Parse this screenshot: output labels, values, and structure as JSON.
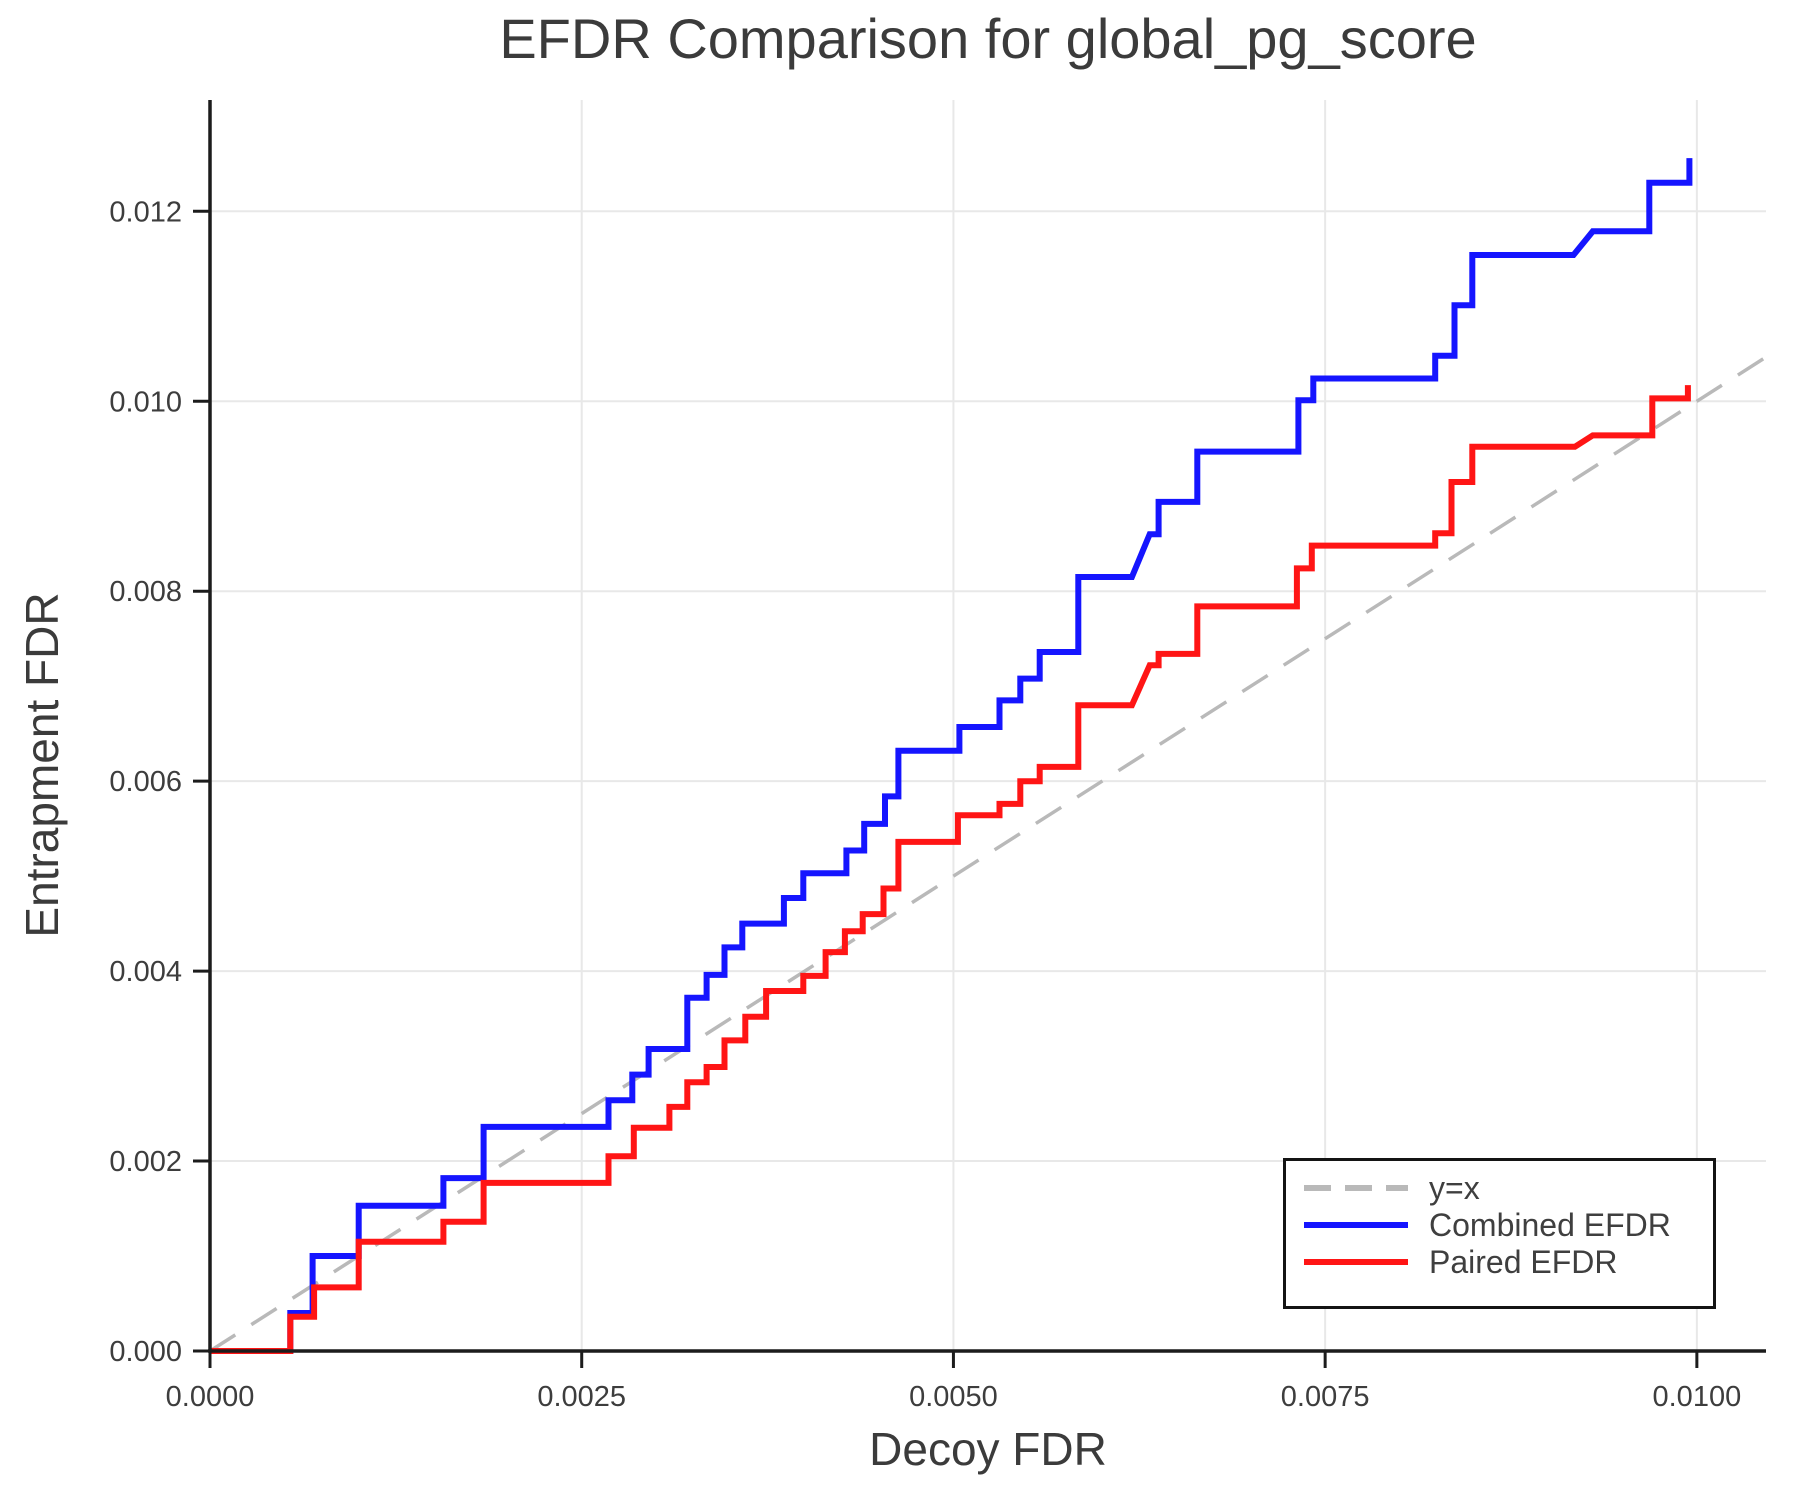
{
  "page": {
    "background": "#ffffff"
  },
  "chart_data": {
    "type": "line",
    "subtype": "step",
    "title": "EFDR Comparison for global_pg_score",
    "xlabel": "Decoy FDR",
    "ylabel": "Entrapment FDR",
    "xlim": [
      0,
      0.010465
    ],
    "ylim": [
      0,
      0.013172
    ],
    "grid": true,
    "legend_position": "lower right",
    "axis_color": "#1c1c1c",
    "grid_color": "#e8e8e8",
    "tick_text_color": "#3d3d3d",
    "x_ticks": {
      "values": [
        0,
        0.0025,
        0.005,
        0.0075,
        0.01
      ],
      "labels": [
        "0.0000",
        "0.0025",
        "0.0050",
        "0.0075",
        "0.0100"
      ]
    },
    "y_ticks": {
      "values": [
        0,
        0.002,
        0.004,
        0.006,
        0.008,
        0.01,
        0.012
      ],
      "labels": [
        "0.000",
        "0.002",
        "0.004",
        "0.006",
        "0.008",
        "0.010",
        "0.012"
      ]
    },
    "series": [
      {
        "name": "y=x",
        "color": "#b9b9b9",
        "style": "dashed",
        "points": [
          [
            0,
            0
          ],
          [
            0.010465,
            0.010465
          ]
        ]
      },
      {
        "name": "Combined EFDR",
        "color": "#1515ff",
        "style": "solid",
        "points": [
          [
            0,
            0
          ],
          [
            0.00054,
            0
          ],
          [
            0.00054,
            0.0004
          ],
          [
            0.00069,
            0.0004
          ],
          [
            0.00069,
            0.001
          ],
          [
            0.001,
            0.001
          ],
          [
            0.001,
            0.00153
          ],
          [
            0.00157,
            0.00153
          ],
          [
            0.00157,
            0.00182
          ],
          [
            0.00184,
            0.00182
          ],
          [
            0.00184,
            0.00236
          ],
          [
            0.00268,
            0.00236
          ],
          [
            0.00268,
            0.00264
          ],
          [
            0.00284,
            0.00264
          ],
          [
            0.00284,
            0.00291
          ],
          [
            0.00295,
            0.00291
          ],
          [
            0.00295,
            0.00318
          ],
          [
            0.00321,
            0.00318
          ],
          [
            0.00321,
            0.00372
          ],
          [
            0.00334,
            0.00372
          ],
          [
            0.00334,
            0.00396
          ],
          [
            0.00346,
            0.00396
          ],
          [
            0.00346,
            0.00425
          ],
          [
            0.00358,
            0.00425
          ],
          [
            0.00358,
            0.0045
          ],
          [
            0.00386,
            0.0045
          ],
          [
            0.00386,
            0.00477
          ],
          [
            0.00399,
            0.00477
          ],
          [
            0.00399,
            0.00503
          ],
          [
            0.00428,
            0.00503
          ],
          [
            0.00428,
            0.00527
          ],
          [
            0.0044,
            0.00527
          ],
          [
            0.0044,
            0.00555
          ],
          [
            0.00454,
            0.00555
          ],
          [
            0.00454,
            0.00584
          ],
          [
            0.00463,
            0.00584
          ],
          [
            0.00463,
            0.00632
          ],
          [
            0.00504,
            0.00632
          ],
          [
            0.00504,
            0.00657
          ],
          [
            0.00531,
            0.00657
          ],
          [
            0.00531,
            0.00685
          ],
          [
            0.00545,
            0.00685
          ],
          [
            0.00545,
            0.00708
          ],
          [
            0.00558,
            0.00708
          ],
          [
            0.00558,
            0.00736
          ],
          [
            0.00584,
            0.00736
          ],
          [
            0.00584,
            0.00815
          ],
          [
            0.0062,
            0.00815
          ],
          [
            0.00632,
            0.0086
          ],
          [
            0.00638,
            0.0086
          ],
          [
            0.00638,
            0.00894
          ],
          [
            0.00664,
            0.00894
          ],
          [
            0.00664,
            0.00947
          ],
          [
            0.00732,
            0.00947
          ],
          [
            0.00732,
            0.01001
          ],
          [
            0.00742,
            0.01001
          ],
          [
            0.00742,
            0.01024
          ],
          [
            0.00824,
            0.01024
          ],
          [
            0.00824,
            0.01048
          ],
          [
            0.00837,
            0.01048
          ],
          [
            0.00837,
            0.01101
          ],
          [
            0.00849,
            0.01101
          ],
          [
            0.00849,
            0.01154
          ],
          [
            0.00917,
            0.01154
          ],
          [
            0.0093,
            0.01179
          ],
          [
            0.00968,
            0.01179
          ],
          [
            0.00968,
            0.0123
          ],
          [
            0.00995,
            0.0123
          ],
          [
            0.00995,
            0.01256
          ]
        ]
      },
      {
        "name": "Paired EFDR",
        "color": "#ff1515",
        "style": "solid",
        "points": [
          [
            0,
            0
          ],
          [
            0.00054,
            0
          ],
          [
            0.00054,
            0.00036
          ],
          [
            0.0007,
            0.00036
          ],
          [
            0.0007,
            0.00067
          ],
          [
            0.001,
            0.00067
          ],
          [
            0.001,
            0.00115
          ],
          [
            0.00157,
            0.00115
          ],
          [
            0.00157,
            0.00136
          ],
          [
            0.00184,
            0.00136
          ],
          [
            0.00184,
            0.00177
          ],
          [
            0.00268,
            0.00177
          ],
          [
            0.00268,
            0.00205
          ],
          [
            0.00285,
            0.00205
          ],
          [
            0.00285,
            0.00235
          ],
          [
            0.00309,
            0.00235
          ],
          [
            0.00309,
            0.00257
          ],
          [
            0.00321,
            0.00257
          ],
          [
            0.00321,
            0.00283
          ],
          [
            0.00334,
            0.00283
          ],
          [
            0.00334,
            0.00299
          ],
          [
            0.00346,
            0.00299
          ],
          [
            0.00346,
            0.00327
          ],
          [
            0.0036,
            0.00327
          ],
          [
            0.0036,
            0.00352
          ],
          [
            0.00374,
            0.00352
          ],
          [
            0.00374,
            0.00379
          ],
          [
            0.00399,
            0.00379
          ],
          [
            0.00399,
            0.00395
          ],
          [
            0.00414,
            0.00395
          ],
          [
            0.00414,
            0.0042
          ],
          [
            0.00427,
            0.0042
          ],
          [
            0.00427,
            0.00442
          ],
          [
            0.00439,
            0.00442
          ],
          [
            0.00439,
            0.0046
          ],
          [
            0.00453,
            0.0046
          ],
          [
            0.00453,
            0.00487
          ],
          [
            0.00463,
            0.00487
          ],
          [
            0.00463,
            0.00536
          ],
          [
            0.00503,
            0.00536
          ],
          [
            0.00503,
            0.00564
          ],
          [
            0.00531,
            0.00564
          ],
          [
            0.00531,
            0.00576
          ],
          [
            0.00545,
            0.00576
          ],
          [
            0.00545,
            0.006
          ],
          [
            0.00558,
            0.006
          ],
          [
            0.00558,
            0.00615
          ],
          [
            0.00584,
            0.00615
          ],
          [
            0.00584,
            0.0068
          ],
          [
            0.0062,
            0.0068
          ],
          [
            0.00632,
            0.00722
          ],
          [
            0.00638,
            0.00722
          ],
          [
            0.00638,
            0.00734
          ],
          [
            0.00664,
            0.00734
          ],
          [
            0.00664,
            0.00784
          ],
          [
            0.00731,
            0.00784
          ],
          [
            0.00731,
            0.00824
          ],
          [
            0.00741,
            0.00824
          ],
          [
            0.00741,
            0.00848
          ],
          [
            0.00824,
            0.00848
          ],
          [
            0.00824,
            0.00861
          ],
          [
            0.00835,
            0.00861
          ],
          [
            0.00835,
            0.00915
          ],
          [
            0.00849,
            0.00915
          ],
          [
            0.00849,
            0.00952
          ],
          [
            0.00918,
            0.00952
          ],
          [
            0.0093,
            0.00964
          ],
          [
            0.0097,
            0.00964
          ],
          [
            0.0097,
            0.01003
          ],
          [
            0.00994,
            0.01003
          ],
          [
            0.00994,
            0.01017
          ]
        ]
      }
    ]
  }
}
